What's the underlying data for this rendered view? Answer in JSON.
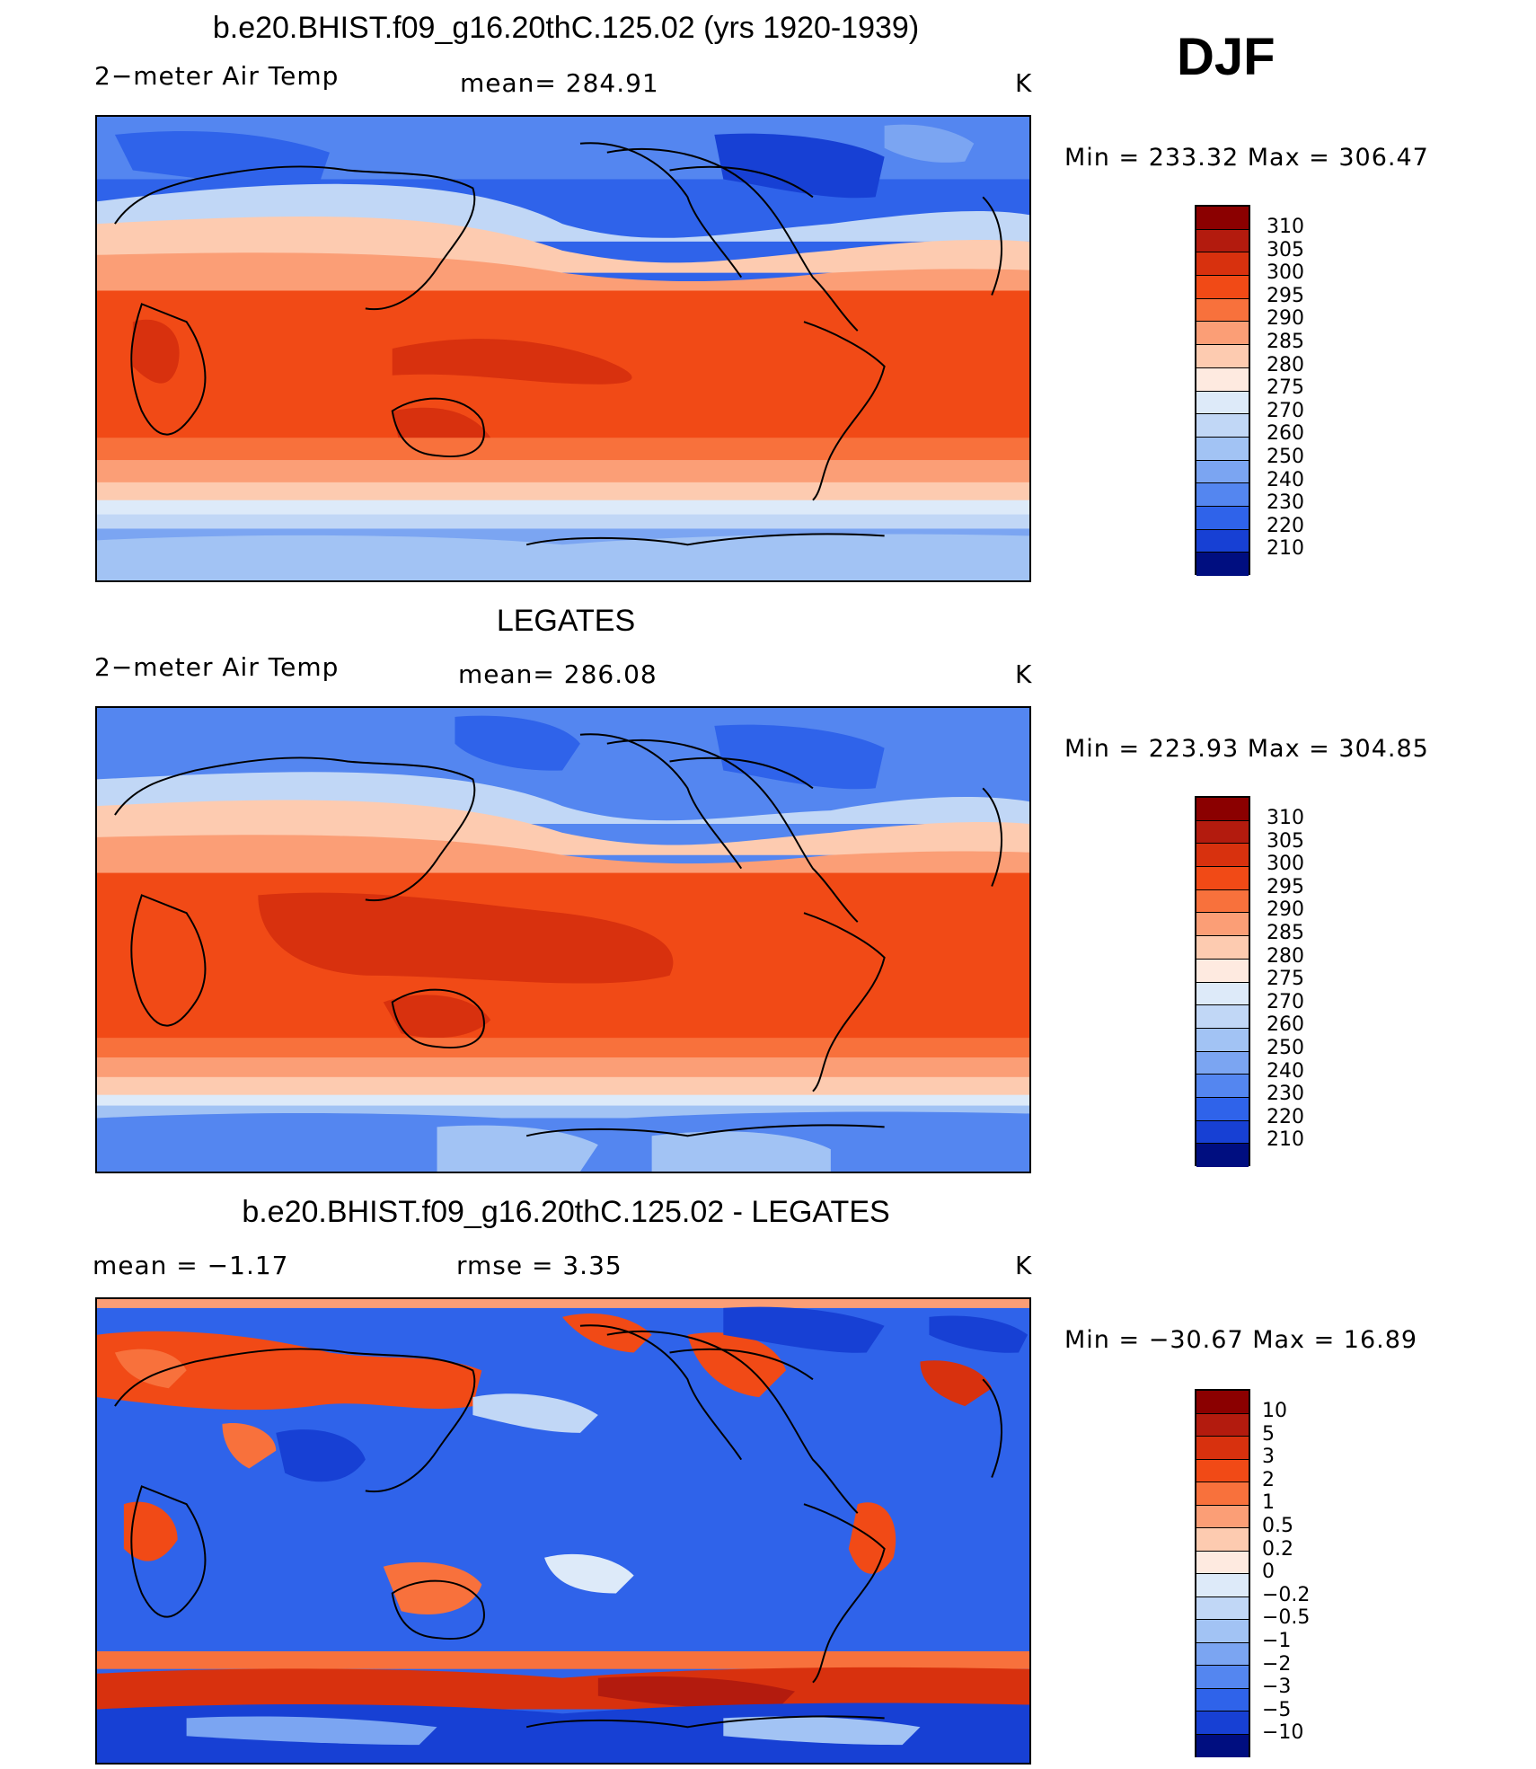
{
  "season": "DJF",
  "colors": {
    "abs_scale": [
      "#8b0000",
      "#b31b0e",
      "#d8310e",
      "#f14a16",
      "#f8713c",
      "#fb9e76",
      "#fdcbb0",
      "#feeae0",
      "#ddeaf9",
      "#c1d7f6",
      "#a2c3f4",
      "#7ba5f2",
      "#5486f0",
      "#2f63ea",
      "#1740d4",
      "#0b26ae",
      "#000e80"
    ],
    "diff_scale": [
      "#8b0000",
      "#b31b0e",
      "#d8310e",
      "#f14a16",
      "#f8713c",
      "#fb9e76",
      "#fdcbb0",
      "#feeae0",
      "#ddeaf9",
      "#c1d7f6",
      "#a2c3f4",
      "#7ba5f2",
      "#5486f0",
      "#2f63ea",
      "#1740d4",
      "#000e80"
    ]
  },
  "panels": [
    {
      "title": "b.e20.BHIST.f09_g16.20thC.125.02 (yrs 1920-1939)",
      "left_label": "2−meter Air Temp",
      "center_label": "mean=  284.91",
      "units": "K",
      "minmax": "Min  =  233.32  Max  =  306.47",
      "tick_labels": [
        "310",
        "305",
        "300",
        "295",
        "290",
        "285",
        "280",
        "275",
        "270",
        "260",
        "250",
        "240",
        "230",
        "220",
        "210"
      ]
    },
    {
      "title": "LEGATES",
      "left_label": "2−meter Air Temp",
      "center_label": "mean=  286.08",
      "units": "K",
      "minmax": "Min  =  223.93  Max  =  304.85",
      "tick_labels": [
        "310",
        "305",
        "300",
        "295",
        "290",
        "285",
        "280",
        "275",
        "270",
        "260",
        "250",
        "240",
        "230",
        "220",
        "210"
      ]
    },
    {
      "title": "b.e20.BHIST.f09_g16.20thC.125.02 - LEGATES",
      "left_label": "mean  =     −1.17",
      "center_label": "rmse  =      3.35",
      "units": "K",
      "minmax": "Min  =  −30.67  Max  =     16.89",
      "tick_labels": [
        "10",
        "5",
        "3",
        "2",
        "1",
        "0.5",
        "0.2",
        "0",
        "−0.2",
        "−0.5",
        "−1",
        "−2",
        "−3",
        "−5",
        "−10"
      ]
    }
  ]
}
